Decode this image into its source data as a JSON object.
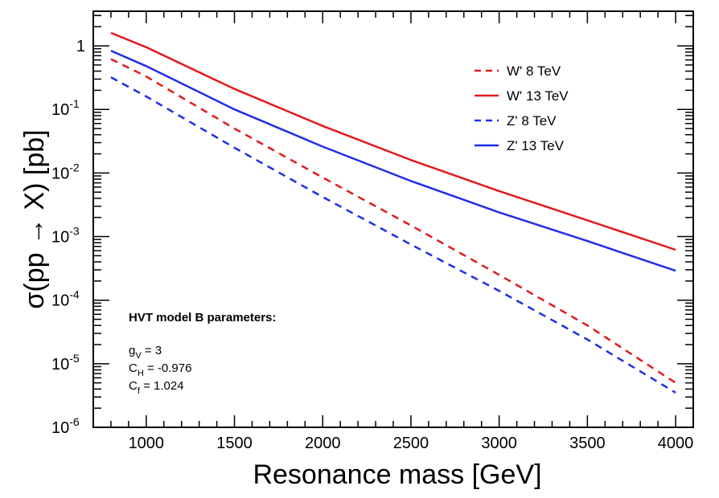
{
  "chart_data": {
    "type": "line",
    "xlabel": "Resonance mass [GeV]",
    "ylabel_parts": [
      "σ(pp ",
      "→",
      " X) [pb]"
    ],
    "xlim": [
      700,
      4100
    ],
    "ylim": [
      1e-06,
      3.5
    ],
    "yscale": "log",
    "grid": false,
    "legend_position": "top-right",
    "x_ticks": [
      {
        "value": 1000,
        "label": "1000"
      },
      {
        "value": 1500,
        "label": "1500"
      },
      {
        "value": 2000,
        "label": "2000"
      },
      {
        "value": 2500,
        "label": "2500"
      },
      {
        "value": 3000,
        "label": "3000"
      },
      {
        "value": 3500,
        "label": "3500"
      },
      {
        "value": 4000,
        "label": "4000"
      }
    ],
    "y_ticks": [
      {
        "value": 1,
        "base": "1",
        "exp": ""
      },
      {
        "value": 0.1,
        "base": "10",
        "exp": "-1"
      },
      {
        "value": 0.01,
        "base": "10",
        "exp": "-2"
      },
      {
        "value": 0.001,
        "base": "10",
        "exp": "-3"
      },
      {
        "value": 0.0001,
        "base": "10",
        "exp": "-4"
      },
      {
        "value": 1e-05,
        "base": "10",
        "exp": "-5"
      },
      {
        "value": 1e-06,
        "base": "10",
        "exp": "-6"
      }
    ],
    "series": [
      {
        "name": "W' 8 TeV",
        "color": "#e31a1c",
        "dash": true,
        "x": [
          800,
          1000,
          1500,
          2000,
          2500,
          3000,
          3500,
          4000
        ],
        "y": [
          0.62,
          0.33,
          0.05,
          0.0085,
          0.0015,
          0.00025,
          4e-05,
          5e-06
        ]
      },
      {
        "name": "W' 13 TeV",
        "color": "#e31a1c",
        "dash": false,
        "x": [
          800,
          1000,
          1500,
          2000,
          2500,
          3000,
          3500,
          4000
        ],
        "y": [
          1.6,
          0.95,
          0.21,
          0.055,
          0.016,
          0.0052,
          0.0018,
          0.00062
        ]
      },
      {
        "name": "Z' 8 TeV",
        "color": "#1f2fe8",
        "dash": true,
        "x": [
          800,
          1000,
          1500,
          2000,
          2500,
          3000,
          3500,
          4000
        ],
        "y": [
          0.32,
          0.16,
          0.025,
          0.0042,
          0.00075,
          0.00014,
          2.4e-05,
          3.5e-06
        ]
      },
      {
        "name": "Z' 13 TeV",
        "color": "#1f2fe8",
        "dash": false,
        "x": [
          800,
          1000,
          1500,
          2000,
          2500,
          3000,
          3500,
          4000
        ],
        "y": [
          0.84,
          0.48,
          0.1,
          0.026,
          0.0075,
          0.0024,
          0.00085,
          0.00029
        ]
      }
    ],
    "annotation": {
      "title": "HVT model B parameters:",
      "lines": [
        {
          "base": "g",
          "sub": "V",
          "rest": " = 3"
        },
        {
          "base": "C",
          "sub": "H",
          "rest": " = -0.976"
        },
        {
          "base": "C",
          "sub": "f",
          "rest": " = 1.024"
        }
      ]
    }
  }
}
